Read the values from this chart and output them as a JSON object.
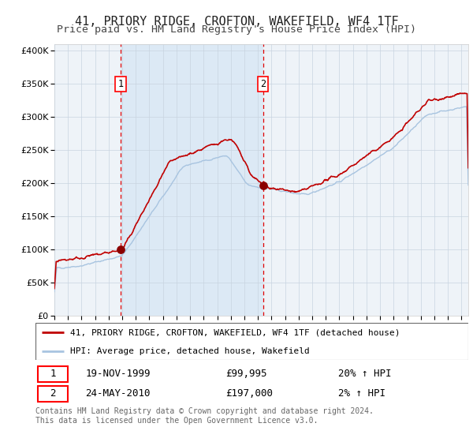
{
  "title": "41, PRIORY RIDGE, CROFTON, WAKEFIELD, WF4 1TF",
  "subtitle": "Price paid vs. HM Land Registry's House Price Index (HPI)",
  "legend_line1": "41, PRIORY RIDGE, CROFTON, WAKEFIELD, WF4 1TF (detached house)",
  "legend_line2": "HPI: Average price, detached house, Wakefield",
  "annotation1_date": "19-NOV-1999",
  "annotation1_price": "£99,995",
  "annotation1_hpi": "20% ↑ HPI",
  "annotation2_date": "24-MAY-2010",
  "annotation2_price": "£197,000",
  "annotation2_hpi": "2% ↑ HPI",
  "footer": "Contains HM Land Registry data © Crown copyright and database right 2024.\nThis data is licensed under the Open Government Licence v3.0.",
  "sale1_year": 1999.88,
  "sale1_price": 99995,
  "sale2_year": 2010.38,
  "sale2_price": 197000,
  "hpi_color": "#a8c4e0",
  "property_color": "#c00000",
  "sale_dot_color": "#8b0000",
  "shading_color": "#dce9f5",
  "vline_color": "#e00000",
  "plot_bg_color": "#eef3f8",
  "grid_color": "#c8d4e0",
  "ylim": [
    0,
    410000
  ],
  "xlim_start": 1995,
  "xlim_end": 2025.5,
  "title_fontsize": 11,
  "subtitle_fontsize": 10
}
